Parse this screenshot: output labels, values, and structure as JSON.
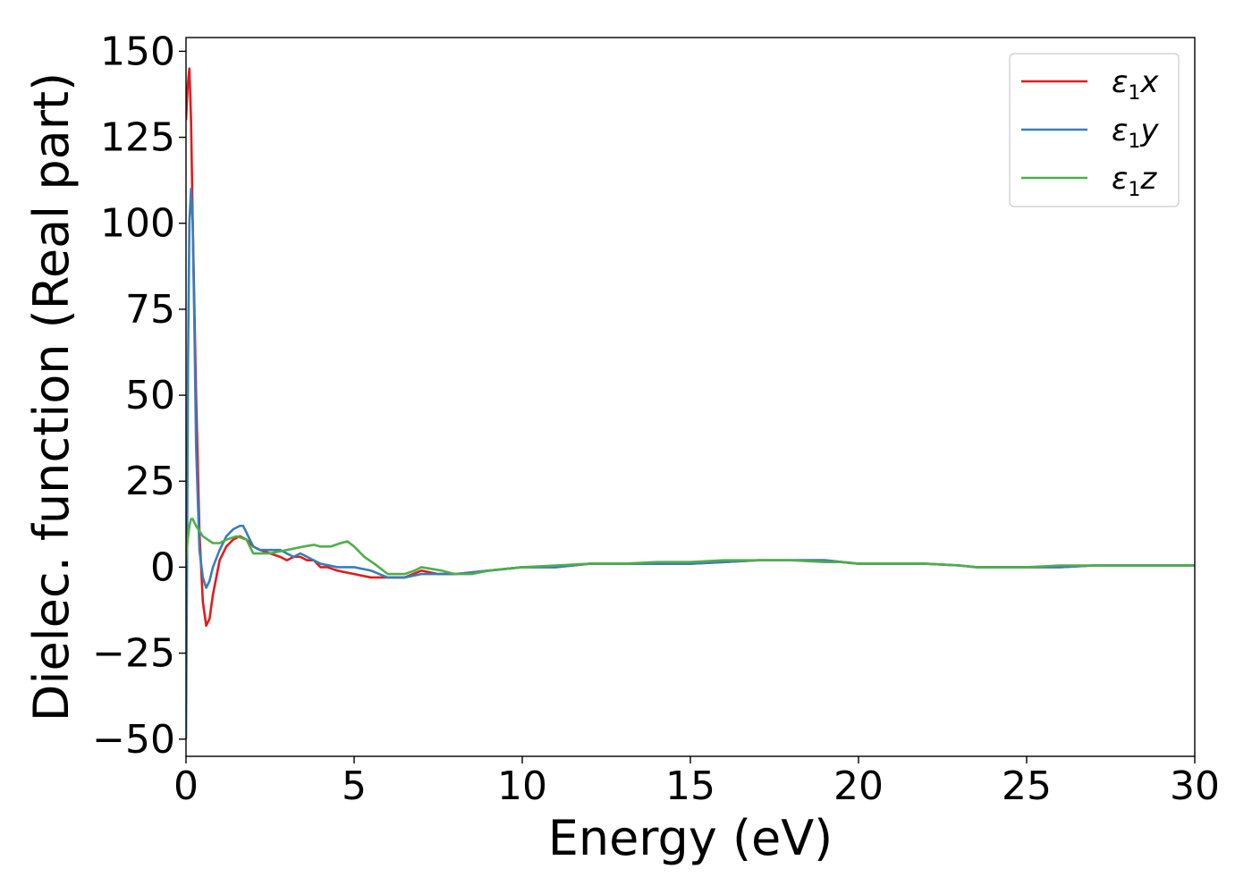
{
  "chart_data": {
    "type": "line",
    "xlabel": "Energy (eV)",
    "ylabel": "Dielec. function (Real part)",
    "xlim": [
      0,
      30
    ],
    "ylim": [
      -55,
      154
    ],
    "xticks": [
      0,
      5,
      10,
      15,
      20,
      25,
      30
    ],
    "xtick_labels": [
      "0",
      "5",
      "10",
      "15",
      "20",
      "25",
      "30"
    ],
    "yticks": [
      -50,
      -25,
      0,
      25,
      50,
      75,
      100,
      125,
      150
    ],
    "ytick_labels": [
      "−50",
      "−25",
      "0",
      "25",
      "50",
      "75",
      "100",
      "125",
      "150"
    ],
    "grid": false,
    "legend_position": "top-right",
    "series": [
      {
        "name": "ε₁x",
        "name_base": "ε",
        "name_sub": "1",
        "name_tail": "x",
        "color": "#e41a1c",
        "x": [
          0.0,
          0.05,
          0.1,
          0.15,
          0.2,
          0.3,
          0.4,
          0.5,
          0.6,
          0.7,
          0.8,
          1.0,
          1.2,
          1.4,
          1.6,
          1.8,
          2.0,
          2.2,
          2.5,
          2.8,
          3.0,
          3.2,
          3.4,
          3.6,
          3.8,
          4.0,
          4.2,
          4.5,
          5.0,
          5.5,
          6.0,
          6.5,
          7.0,
          7.5,
          8.0,
          9.0,
          10.0,
          11.0,
          12.0,
          13.0,
          14.0,
          15.0,
          16.0,
          17.0,
          18.0,
          19.0,
          19.5,
          20.0,
          21.0,
          22.0,
          23.0,
          23.5,
          24.0,
          25.0,
          26.0,
          27.0,
          28.0,
          29.0,
          30.0
        ],
        "y": [
          130,
          140,
          145,
          130,
          100,
          50,
          10,
          -10,
          -17,
          -15,
          -8,
          2,
          6,
          8,
          9,
          8,
          6,
          5,
          4,
          3,
          2,
          3,
          3,
          2,
          2,
          0,
          0,
          -1,
          -2,
          -3,
          -3,
          -3,
          -1,
          -2,
          -2,
          -1,
          0,
          0,
          1,
          1,
          1,
          1,
          1.5,
          2,
          2,
          2,
          1.5,
          1,
          1,
          1,
          0.5,
          0,
          0,
          0,
          0,
          0.5,
          0.5,
          0.5,
          0.5
        ]
      },
      {
        "name": "ε₁y",
        "name_base": "ε",
        "name_sub": "1",
        "name_tail": "y",
        "color": "#377eb8",
        "x": [
          0.0,
          0.03,
          0.06,
          0.1,
          0.15,
          0.2,
          0.25,
          0.3,
          0.4,
          0.5,
          0.6,
          0.7,
          0.8,
          1.0,
          1.2,
          1.4,
          1.6,
          1.7,
          1.8,
          2.0,
          2.2,
          2.5,
          2.8,
          3.0,
          3.2,
          3.4,
          3.6,
          3.8,
          4.0,
          4.5,
          5.0,
          5.5,
          6.0,
          6.5,
          7.0,
          7.5,
          8.0,
          9.0,
          10.0,
          11.0,
          12.0,
          13.0,
          14.0,
          15.0,
          16.0,
          17.0,
          18.0,
          18.5,
          19.0,
          19.5,
          20.0,
          21.0,
          22.0,
          23.0,
          23.5,
          24.0,
          25.0,
          26.0,
          27.0,
          28.0,
          29.0,
          30.0
        ],
        "y": [
          -50,
          0,
          60,
          100,
          110,
          100,
          70,
          35,
          5,
          -3,
          -6,
          -4,
          0,
          5,
          9,
          11,
          12,
          12,
          10,
          6,
          5,
          5,
          5,
          4,
          3,
          4,
          3,
          2,
          1,
          0,
          0,
          -1,
          -3,
          -3,
          -2,
          -2,
          -2,
          -1,
          0,
          0,
          1,
          1,
          1,
          1,
          1.5,
          2,
          2,
          2,
          2,
          1.5,
          1,
          1,
          1,
          0.5,
          0,
          0,
          0,
          0,
          0.5,
          0.5,
          0.5,
          0.5
        ]
      },
      {
        "name": "ε₁z",
        "name_base": "ε",
        "name_sub": "1",
        "name_tail": "z",
        "color": "#4daf4a",
        "x": [
          0.0,
          0.05,
          0.1,
          0.15,
          0.2,
          0.3,
          0.5,
          0.8,
          1.0,
          1.2,
          1.5,
          1.8,
          2.0,
          2.2,
          2.5,
          3.0,
          3.5,
          3.8,
          4.0,
          4.3,
          4.6,
          4.8,
          5.0,
          5.3,
          5.6,
          6.0,
          6.5,
          6.8,
          7.0,
          7.3,
          7.6,
          8.0,
          8.5,
          9.0,
          10.0,
          11.0,
          12.0,
          13.0,
          14.0,
          15.0,
          16.0,
          17.0,
          18.0,
          19.0,
          19.5,
          20.0,
          21.0,
          22.0,
          23.0,
          23.5,
          24.0,
          25.0,
          26.0,
          27.0,
          28.0,
          29.0,
          30.0
        ],
        "y": [
          2,
          8,
          12,
          14,
          14,
          12,
          9,
          7,
          7,
          8,
          9,
          8,
          4,
          4,
          4,
          5,
          6,
          6.5,
          6,
          6,
          7,
          7.5,
          6,
          3,
          1,
          -2,
          -2,
          -1,
          0,
          -0.5,
          -1,
          -2,
          -2,
          -1,
          0,
          0.5,
          1,
          1,
          1.5,
          1.5,
          2,
          2,
          2,
          1.5,
          1.5,
          1,
          1,
          1,
          0.5,
          0,
          0,
          0,
          0.5,
          0.5,
          0.5,
          0.5,
          0.5
        ]
      }
    ]
  }
}
